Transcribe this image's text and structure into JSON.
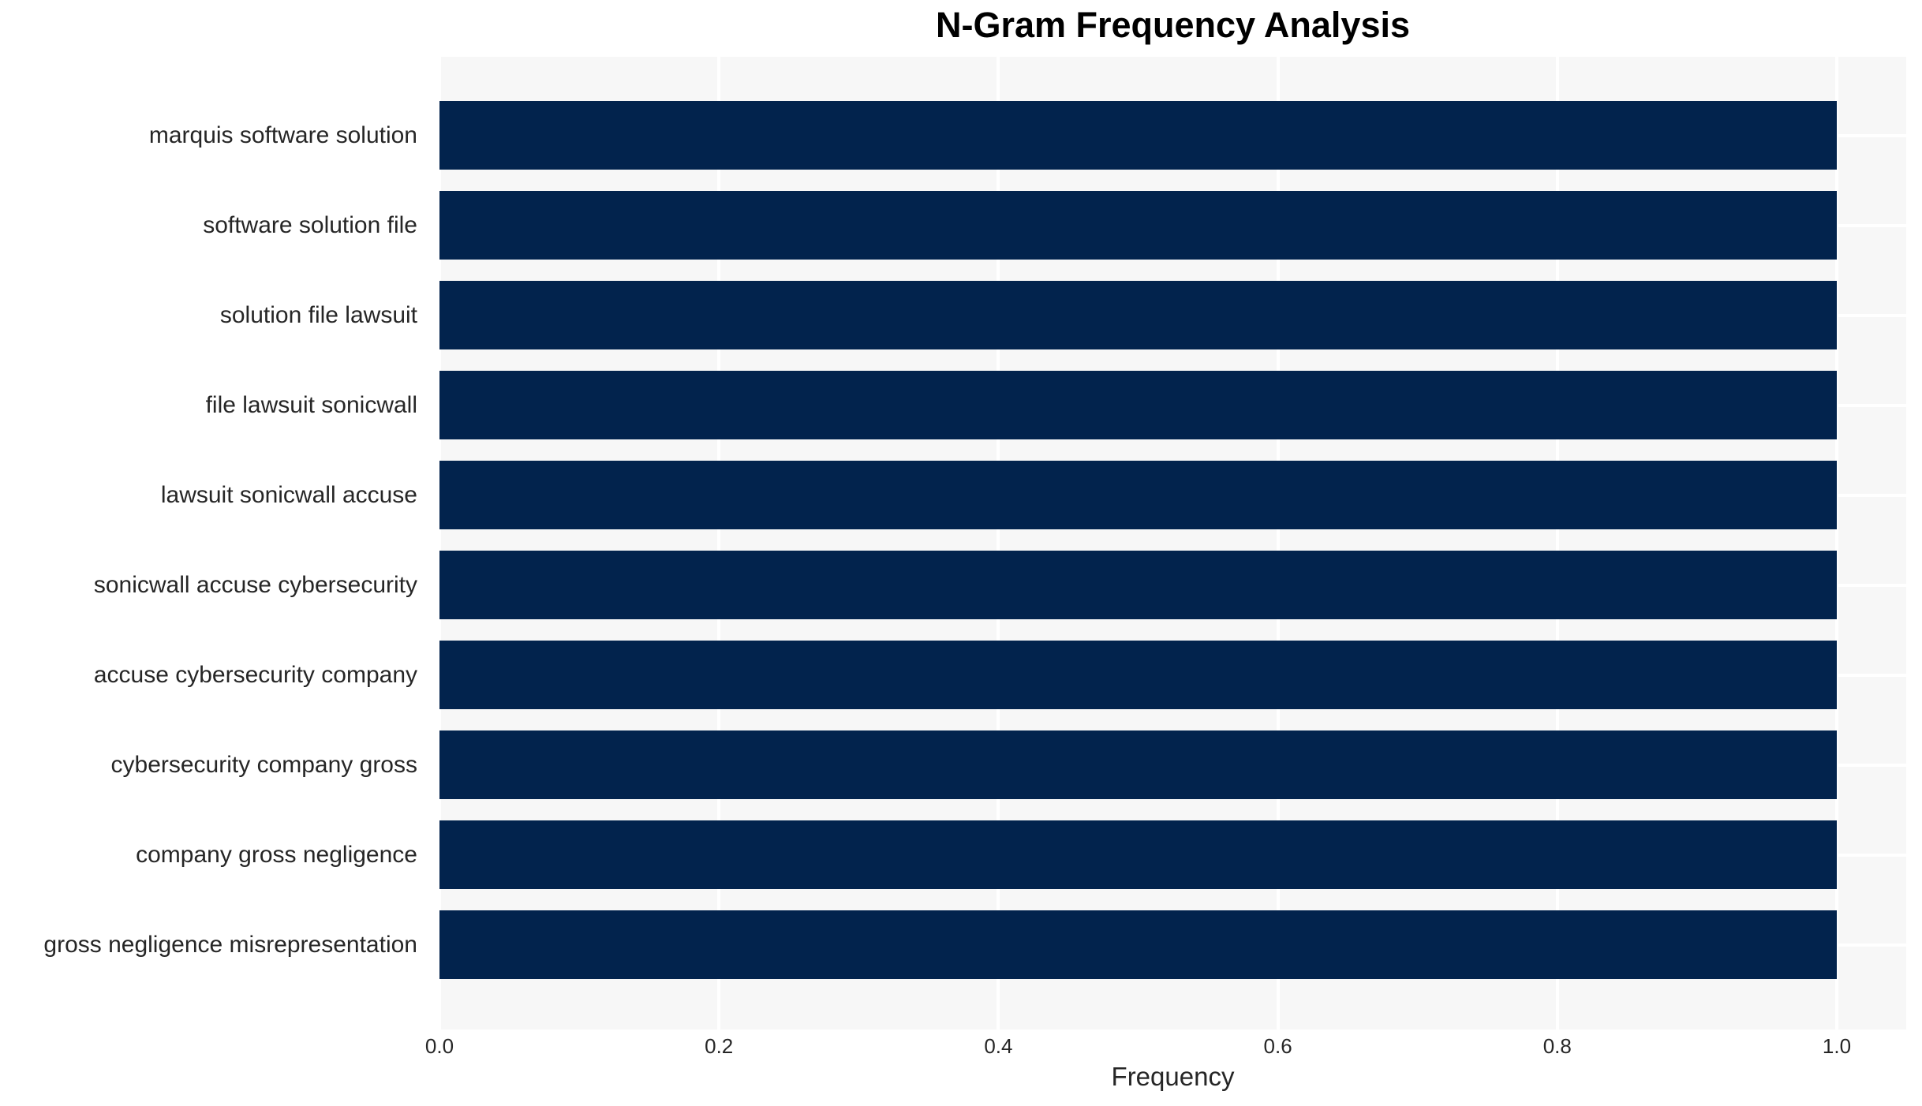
{
  "chart_data": {
    "type": "bar",
    "orientation": "horizontal",
    "title": "N-Gram Frequency Analysis",
    "xlabel": "Frequency",
    "ylabel": "",
    "categories": [
      "marquis software solution",
      "software solution file",
      "solution file lawsuit",
      "file lawsuit sonicwall",
      "lawsuit sonicwall accuse",
      "sonicwall accuse cybersecurity",
      "accuse cybersecurity company",
      "cybersecurity company gross",
      "company gross negligence",
      "gross negligence misrepresentation"
    ],
    "values": [
      1.0,
      1.0,
      1.0,
      1.0,
      1.0,
      1.0,
      1.0,
      1.0,
      1.0,
      1.0
    ],
    "xticks": [
      0.0,
      0.2,
      0.4,
      0.6,
      0.8,
      1.0
    ],
    "xtick_labels": [
      "0.0",
      "0.2",
      "0.4",
      "0.6",
      "0.8",
      "1.0"
    ],
    "xlim": [
      0,
      1.05
    ],
    "grid": true,
    "legend": false,
    "colors": {
      "bar": "#02234d",
      "plot_background": "#f7f7f7",
      "gridline": "#ffffff",
      "figure_background": "#ffffff",
      "tick_text": "#262626",
      "title_text": "#000000"
    }
  }
}
